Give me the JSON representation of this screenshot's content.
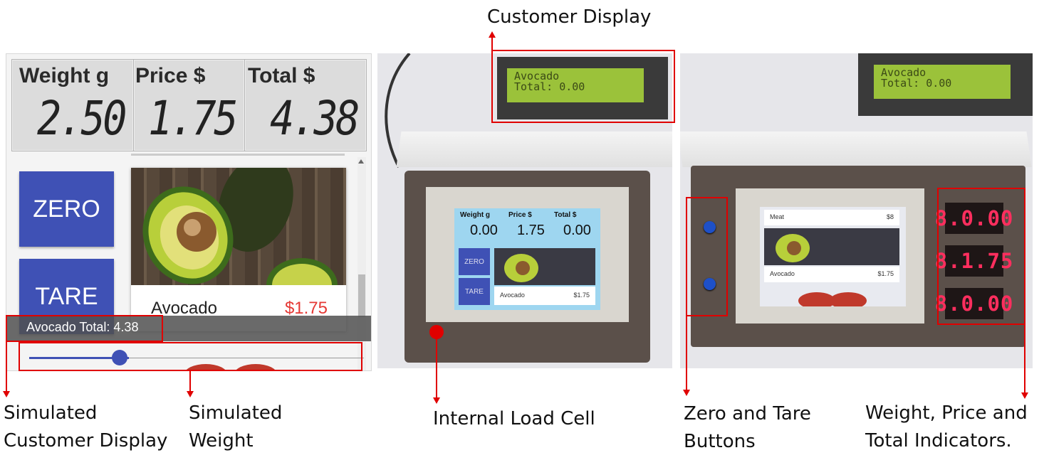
{
  "simulated_ui": {
    "indicators": [
      {
        "title": "Weight g",
        "value": "2.50"
      },
      {
        "title": "Price $",
        "value": "1.75"
      },
      {
        "title": "Total $",
        "value": "4.38"
      }
    ],
    "zero_label": "ZERO",
    "tare_label": "TARE",
    "product": {
      "name": "Avocado",
      "price": "$1.75"
    },
    "customer_display_text": "Avocado Total: 4.38",
    "slider": {
      "value_fraction": 0.3
    }
  },
  "device_lcd": {
    "line1": "Avocado",
    "line2": "Total: 0.00"
  },
  "device_screen_mid": {
    "headers": [
      "Weight g",
      "Price $",
      "Total $"
    ],
    "values": [
      "0.00",
      "1.75",
      "0.00"
    ],
    "zero_label": "ZERO",
    "tare_label": "TARE",
    "product_name": "Avocado",
    "product_price": "$1.75"
  },
  "device_screen_right": {
    "item1_name": "Meat",
    "item1_price": "$8",
    "item2_name": "Avocado",
    "item2_price": "$1.75"
  },
  "seven_segment": [
    "8.0.00",
    "8.1.75",
    "8.0.00"
  ],
  "annotations": {
    "customer_display": "Customer Display",
    "simulated_customer_display_line1": "Simulated",
    "simulated_customer_display_line2": "Customer Display",
    "simulated_weight_line1": "Simulated",
    "simulated_weight_line2": "Weight",
    "internal_load_cell": "Internal Load Cell",
    "zero_tare_line1": "Zero and Tare",
    "zero_tare_line2": "Buttons",
    "indicators_line1": "Weight, Price and",
    "indicators_line2": "Total Indicators."
  },
  "colors": {
    "accent": "#3f51b5",
    "annotation_red": "#e00000",
    "price_red": "#e53935",
    "segment_red": "#ff2e5e"
  }
}
